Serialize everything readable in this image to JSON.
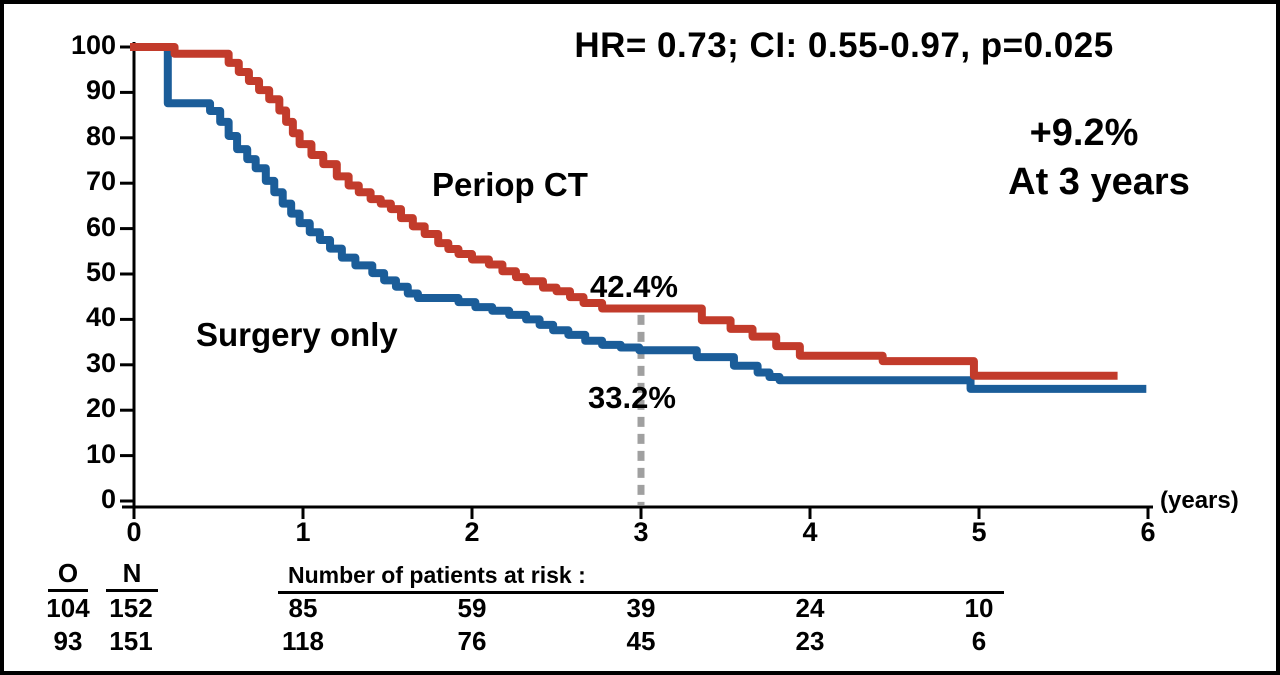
{
  "frame": {
    "background_color": "#ffffff",
    "border_color": "#000000"
  },
  "title": "HR= 0.73; CI: 0.55-0.97, p=0.025",
  "annotations": {
    "benefit_value": "+9.2%",
    "benefit_time": "At 3 years",
    "periop_label": "Periop CT",
    "surgery_label": "Surgery only",
    "periop_pct_at_3y": "42.4%",
    "surgery_pct_at_3y": "33.2%",
    "x_axis_unit": "(years)"
  },
  "colors": {
    "periop_ct": "#c23b2b",
    "surgery_only": "#1b5d99",
    "reference_line": "#a0a0a0",
    "axis": "#000000"
  },
  "chart_data": {
    "type": "line",
    "subtype": "kaplan-meier-step",
    "title": "HR= 0.73; CI: 0.55-0.97, p=0.025",
    "xlabel": "(years)",
    "ylabel": "",
    "xlim": [
      0,
      6
    ],
    "ylim": [
      0,
      100
    ],
    "x_ticks": [
      0,
      1,
      2,
      3,
      4,
      5,
      6
    ],
    "y_ticks": [
      100,
      90,
      80,
      70,
      60,
      50,
      40,
      30,
      20,
      10,
      0
    ],
    "grid": false,
    "legend_position": "inline-labels",
    "reference_line": {
      "x": 3,
      "style": "dashed",
      "color": "#a0a0a0",
      "y_top_value": 41,
      "y_bottom_value": 0
    },
    "series": [
      {
        "name": "Periop CT",
        "color": "#c23b2b",
        "value_at_3y": 42.4,
        "points": [
          [
            0,
            100
          ],
          [
            0.24,
            98.5
          ],
          [
            0.56,
            96.5
          ],
          [
            0.62,
            94.5
          ],
          [
            0.68,
            92.5
          ],
          [
            0.74,
            90.5
          ],
          [
            0.8,
            88.5
          ],
          [
            0.86,
            86
          ],
          [
            0.9,
            83.5
          ],
          [
            0.94,
            81
          ],
          [
            0.98,
            78.6
          ],
          [
            1.05,
            76.2
          ],
          [
            1.12,
            74.2
          ],
          [
            1.2,
            71.5
          ],
          [
            1.27,
            69.5
          ],
          [
            1.33,
            68
          ],
          [
            1.4,
            66.5
          ],
          [
            1.46,
            65.5
          ],
          [
            1.52,
            64.3
          ],
          [
            1.58,
            62.3
          ],
          [
            1.65,
            60.5
          ],
          [
            1.72,
            58.8
          ],
          [
            1.8,
            56.8
          ],
          [
            1.86,
            55.5
          ],
          [
            1.92,
            54.4
          ],
          [
            2.0,
            53.2
          ],
          [
            2.1,
            52.1
          ],
          [
            2.18,
            50.6
          ],
          [
            2.26,
            49.3
          ],
          [
            2.32,
            48.4
          ],
          [
            2.42,
            47
          ],
          [
            2.5,
            46.2
          ],
          [
            2.58,
            44.9
          ],
          [
            2.66,
            43.6
          ],
          [
            2.77,
            42.4
          ],
          [
            3.36,
            39.8
          ],
          [
            3.53,
            37.9
          ],
          [
            3.66,
            36.2
          ],
          [
            3.8,
            34.1
          ],
          [
            3.94,
            32
          ],
          [
            4.43,
            30.8
          ],
          [
            4.97,
            27.6
          ],
          [
            5.82,
            27.6
          ]
        ]
      },
      {
        "name": "Surgery only",
        "color": "#1b5d99",
        "value_at_3y": 33.2,
        "points": [
          [
            0,
            100
          ],
          [
            0.2,
            87.6
          ],
          [
            0.45,
            85.9
          ],
          [
            0.51,
            83.5
          ],
          [
            0.56,
            80.4
          ],
          [
            0.61,
            77.5
          ],
          [
            0.67,
            75.3
          ],
          [
            0.72,
            73.3
          ],
          [
            0.78,
            70.5
          ],
          [
            0.83,
            68
          ],
          [
            0.88,
            65.5
          ],
          [
            0.93,
            63.3
          ],
          [
            0.98,
            61.2
          ],
          [
            1.04,
            59.2
          ],
          [
            1.1,
            57.5
          ],
          [
            1.16,
            55.6
          ],
          [
            1.23,
            53.6
          ],
          [
            1.31,
            51.9
          ],
          [
            1.41,
            50.2
          ],
          [
            1.48,
            48.6
          ],
          [
            1.55,
            47.2
          ],
          [
            1.62,
            45.7
          ],
          [
            1.68,
            44.7
          ],
          [
            1.92,
            43.8
          ],
          [
            2.02,
            42.7
          ],
          [
            2.12,
            41.9
          ],
          [
            2.22,
            41
          ],
          [
            2.32,
            40
          ],
          [
            2.4,
            38.8
          ],
          [
            2.48,
            37.6
          ],
          [
            2.57,
            36.6
          ],
          [
            2.67,
            35.3
          ],
          [
            2.77,
            34.4
          ],
          [
            2.88,
            33.8
          ],
          [
            2.99,
            33.2
          ],
          [
            3.33,
            31.7
          ],
          [
            3.55,
            29.8
          ],
          [
            3.69,
            28.3
          ],
          [
            3.76,
            27.3
          ],
          [
            3.82,
            26.6
          ],
          [
            4.95,
            24.7
          ],
          [
            5.99,
            24.7
          ]
        ]
      }
    ]
  },
  "risk_table": {
    "col_o_header": "O",
    "col_n_header": "N",
    "risk_header": "Number of patients at risk :",
    "rows": [
      {
        "o": "104",
        "n": "152",
        "at_risk": [
          "85",
          "59",
          "39",
          "24",
          "10"
        ]
      },
      {
        "o": "93",
        "n": "151",
        "at_risk": [
          "118",
          "76",
          "45",
          "23",
          "6"
        ]
      }
    ]
  }
}
